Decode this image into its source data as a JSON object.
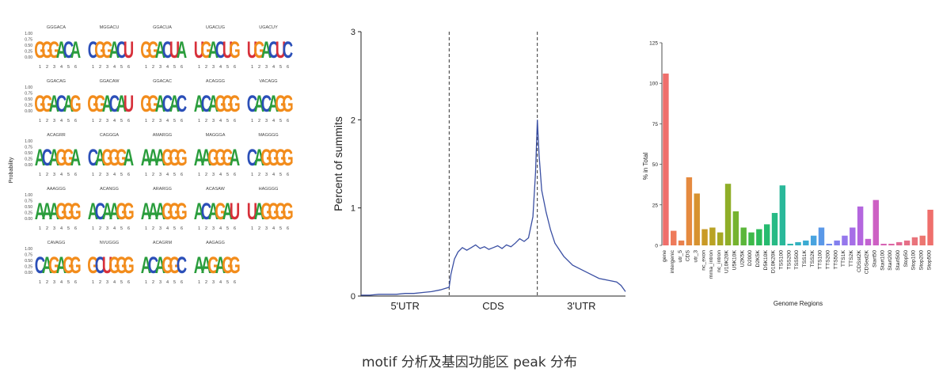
{
  "caption": "motif 分析及基因功能区 peak 分布",
  "motif_panel": {
    "ylabel": "Probability",
    "yticks": [
      "1.00",
      "0.75",
      "0.50",
      "0.25",
      "0.00"
    ],
    "positions": [
      "1",
      "2",
      "3",
      "4",
      "5",
      "6"
    ],
    "base_colors": {
      "G": "#f28c1c",
      "A": "#2a9d3c",
      "C": "#2b4fb8",
      "U": "#d7303a"
    },
    "motifs": [
      {
        "name": "GGGACA",
        "seq": "GGGACA"
      },
      {
        "name": "MGGACU",
        "seq": "CGGACU"
      },
      {
        "name": "GGACUA",
        "seq": "GGACUA"
      },
      {
        "name": "UGACUG",
        "seq": "UGACUG"
      },
      {
        "name": "UGACUY",
        "seq": "UGACUC"
      },
      {
        "name": "GGACAG",
        "seq": "GGACAG"
      },
      {
        "name": "GGACAW",
        "seq": "GGACAU"
      },
      {
        "name": "GGACAC",
        "seq": "GGACAC"
      },
      {
        "name": "ACAGGG",
        "seq": "ACAGGG"
      },
      {
        "name": "VACAGG",
        "seq": "CACAGG"
      },
      {
        "name": "ACAGRR",
        "seq": "ACAGGA"
      },
      {
        "name": "CAGGGA",
        "seq": "CAGGGA"
      },
      {
        "name": "AMARGG",
        "seq": "AAAGGG"
      },
      {
        "name": "MAGGGA",
        "seq": "AAGGGA"
      },
      {
        "name": "MAGGGG",
        "seq": "CAGGGG"
      },
      {
        "name": "AAAGGG",
        "seq": "AAAGGG"
      },
      {
        "name": "ACANGG",
        "seq": "ACAAGG"
      },
      {
        "name": "ARARGG",
        "seq": "AAAGGG"
      },
      {
        "name": "ACASAW",
        "seq": "ACAGAU"
      },
      {
        "name": "HAGGGG",
        "seq": "UAGGGG"
      },
      {
        "name": "CAVAGG",
        "seq": "CAGAGG"
      },
      {
        "name": "NVUGGG",
        "seq": "GCUGGG"
      },
      {
        "name": "ACAGRM",
        "seq": "ACAGGC"
      },
      {
        "name": "AAGAGG",
        "seq": "AAGAGG"
      }
    ]
  },
  "summit_panel": {
    "chart_data": {
      "type": "line",
      "ylabel": "Percent of summits",
      "ylim": [
        0,
        3
      ],
      "yticks": [
        "0",
        "1",
        "2",
        "3"
      ],
      "regions": [
        "5'UTR",
        "CDS",
        "3'UTR"
      ],
      "region_boundaries": [
        1,
        2
      ],
      "xlim": [
        0,
        3
      ],
      "series_color": "#3a4fa3",
      "x": [
        0,
        0.1,
        0.2,
        0.3,
        0.4,
        0.5,
        0.6,
        0.7,
        0.8,
        0.9,
        1.0,
        1.02,
        1.06,
        1.1,
        1.15,
        1.2,
        1.25,
        1.3,
        1.35,
        1.4,
        1.45,
        1.5,
        1.55,
        1.6,
        1.65,
        1.7,
        1.75,
        1.8,
        1.85,
        1.9,
        1.95,
        1.98,
        2.0,
        2.02,
        2.05,
        2.1,
        2.15,
        2.2,
        2.3,
        2.4,
        2.5,
        2.6,
        2.7,
        2.8,
        2.9,
        2.95,
        3.0
      ],
      "y": [
        0.01,
        0.01,
        0.02,
        0.02,
        0.02,
        0.03,
        0.03,
        0.04,
        0.05,
        0.07,
        0.1,
        0.25,
        0.42,
        0.5,
        0.55,
        0.52,
        0.55,
        0.58,
        0.54,
        0.56,
        0.53,
        0.55,
        0.57,
        0.54,
        0.58,
        0.56,
        0.6,
        0.65,
        0.62,
        0.66,
        0.9,
        1.4,
        2.0,
        1.6,
        1.2,
        0.95,
        0.75,
        0.6,
        0.45,
        0.35,
        0.3,
        0.25,
        0.2,
        0.18,
        0.16,
        0.12,
        0.05
      ]
    }
  },
  "genome_panel": {
    "chart_data": {
      "type": "bar",
      "ylabel": "% in Total",
      "xlabel": "Genome Regions",
      "ylim": [
        0,
        125
      ],
      "yticks": [
        "0",
        "25",
        "50",
        "75",
        "100",
        "125"
      ],
      "categories": [
        "gene",
        "intergenic",
        "utr_5",
        "CDS",
        "utr_3",
        "nc_exon",
        "mrna_intron",
        "nc_intron",
        "U10K20K",
        "U5K10K",
        "U2K5K",
        "D2000",
        "D2K5K",
        "D5K10K",
        "D10K20K",
        "TSS100",
        "TSS200",
        "TSS500",
        "TSS1K",
        "TSS2K",
        "TTS100",
        "TTS200",
        "TTS500",
        "TTS1K",
        "TTS2K",
        "CDSst2K",
        "CDSed2K",
        "Start50",
        "Start100",
        "Start200",
        "Start500",
        "Stop50",
        "Stop100",
        "Stop200",
        "Stop500"
      ],
      "values": [
        106,
        9,
        3,
        42,
        32,
        10,
        11,
        8,
        38,
        21,
        11,
        8,
        10,
        13,
        20,
        37,
        1,
        2,
        3,
        6,
        11,
        1,
        3,
        6,
        11,
        24,
        4,
        28,
        1,
        1,
        2,
        3,
        5,
        6,
        22
      ],
      "colors": [
        "#ef6f6c",
        "#ee7a5a",
        "#e9804c",
        "#e58a3f",
        "#d7922f",
        "#c99a26",
        "#b9a224",
        "#a6a825",
        "#8fae28",
        "#76b32f",
        "#5bb63a",
        "#3eb949",
        "#2cbb5a",
        "#26bb70",
        "#27ba85",
        "#2ab89a",
        "#2db5ae",
        "#33b1c1",
        "#3babd2",
        "#48a3df",
        "#5a98e8",
        "#6f8cec",
        "#8380ee",
        "#9577ec",
        "#a66ee7",
        "#b466de",
        "#c262d1",
        "#cd60c3",
        "#d662b4",
        "#dd65a4",
        "#e26a95",
        "#e66f87",
        "#e9737b",
        "#ec7670",
        "#ef6f6c"
      ]
    }
  }
}
